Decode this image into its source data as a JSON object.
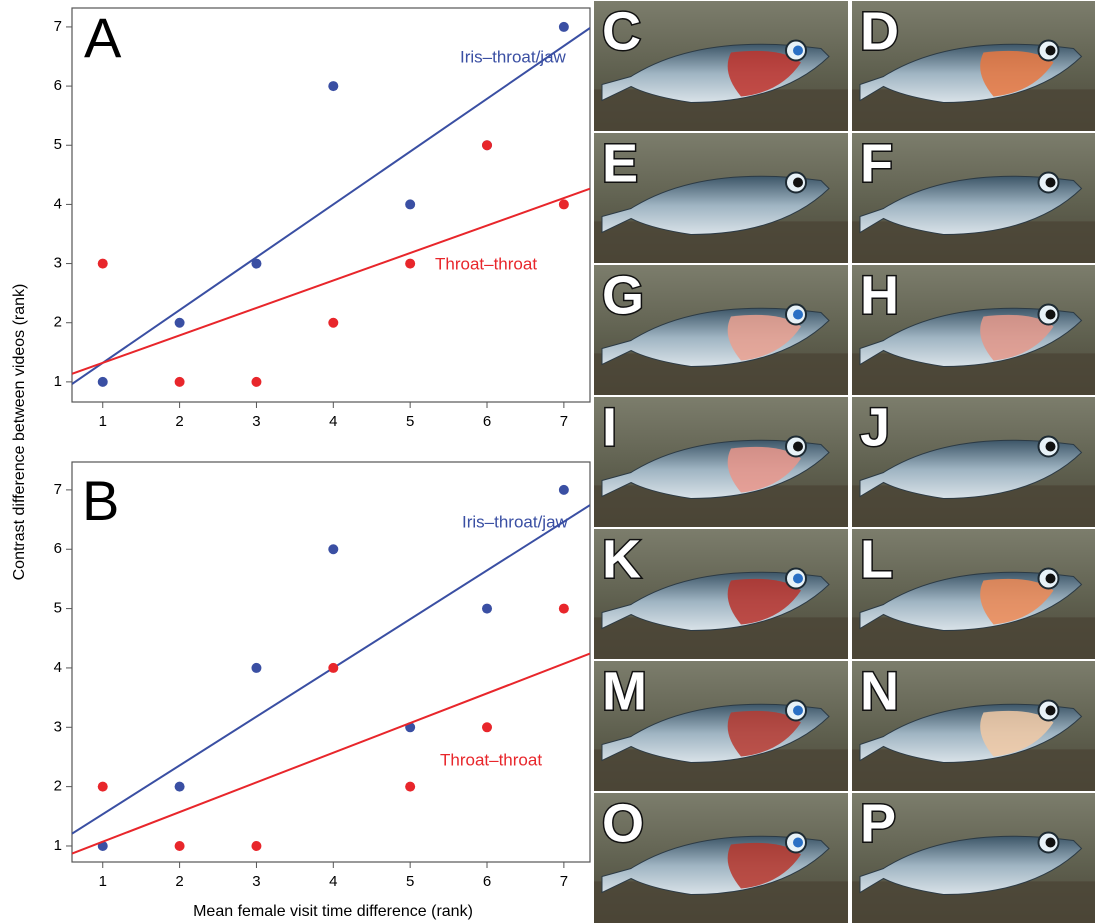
{
  "chart_data": [
    {
      "type": "scatter",
      "panel": "A",
      "y_label": "Contrast difference between videos (rank)",
      "x": [
        1,
        2,
        3,
        4,
        5,
        6,
        7
      ],
      "series": [
        {
          "name": "Iris–throat/jaw",
          "color": "#3a4fa3",
          "values": [
            1,
            2,
            3,
            6,
            4,
            5,
            7
          ]
        },
        {
          "name": "Throat–throat",
          "color": "#e8262b",
          "values": [
            3,
            1,
            1,
            2,
            3,
            5,
            4
          ]
        }
      ],
      "xlim": [
        0.6,
        7.34
      ],
      "ylim": [
        0.66,
        7.32
      ],
      "xticks": [
        1,
        2,
        3,
        4,
        5,
        6,
        7
      ],
      "yticks": [
        1,
        2,
        3,
        4,
        5,
        6,
        7
      ],
      "fit_lines": true
    },
    {
      "type": "scatter",
      "panel": "B",
      "x_label": "Mean female visit time difference (rank)",
      "x": [
        1,
        2,
        3,
        4,
        5,
        6,
        7
      ],
      "series": [
        {
          "name": "Iris–throat/jaw",
          "color": "#3a4fa3",
          "values": [
            1,
            2,
            4,
            6,
            3,
            5,
            7
          ]
        },
        {
          "name": "Throat–throat",
          "color": "#e8262b",
          "values": [
            2,
            1,
            1,
            4,
            2,
            3,
            5
          ]
        }
      ],
      "xlim": [
        0.6,
        7.34
      ],
      "ylim": [
        0.73,
        7.47
      ],
      "xticks": [
        1,
        2,
        3,
        4,
        5,
        6,
        7
      ],
      "yticks": [
        1,
        2,
        3,
        4,
        5,
        6,
        7
      ],
      "fit_lines": true
    }
  ],
  "photos": {
    "labels": [
      "C",
      "D",
      "E",
      "F",
      "G",
      "H",
      "I",
      "J",
      "K",
      "L",
      "M",
      "N",
      "O",
      "P"
    ]
  }
}
